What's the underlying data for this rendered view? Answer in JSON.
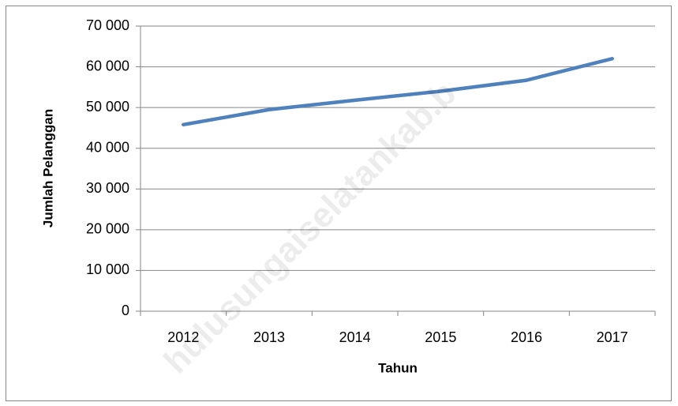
{
  "chart_data": {
    "type": "line",
    "categories": [
      "2012",
      "2013",
      "2014",
      "2015",
      "2016",
      "2017"
    ],
    "series": [
      {
        "name": "Jumlah Pelanggan",
        "color": "#4f81bd",
        "values": [
          45800,
          49500,
          51800,
          54000,
          56700,
          62000
        ]
      }
    ],
    "ylim": [
      0,
      70000
    ],
    "yticks": [
      0,
      {
        "value": 10000,
        "label": "10 000"
      },
      {
        "value": 20000,
        "label": "20 000"
      },
      {
        "value": 30000,
        "label": "30 000"
      },
      {
        "value": 40000,
        "label": "40 000"
      },
      {
        "value": 50000,
        "label": "50 000"
      },
      {
        "value": 60000,
        "label": "60 000"
      },
      {
        "value": 70000,
        "label": "70 000"
      }
    ],
    "x_label": "Tahun",
    "y_label": "Jumlah Pelanggan",
    "grid": true,
    "watermark": "hulusungaiselatankab.b"
  }
}
